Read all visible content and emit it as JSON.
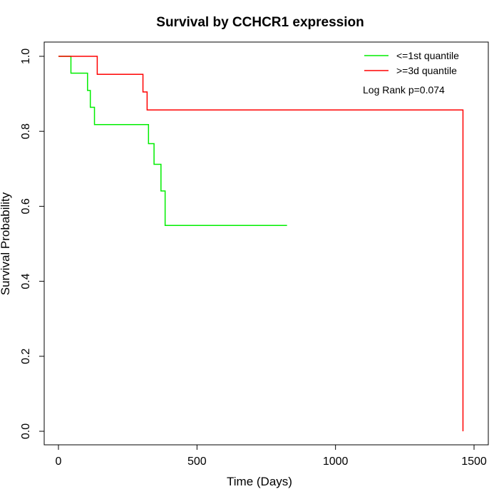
{
  "chart_data": {
    "type": "line",
    "title": "Survival by CCHCR1 expression",
    "xlabel": "Time (Days)",
    "ylabel": "Survival Probability",
    "xlim": [
      0,
      1500
    ],
    "ylim": [
      0,
      1.0
    ],
    "x_ticks": [
      0,
      500,
      1000,
      1500
    ],
    "x_tick_labels": [
      "0",
      "500",
      "1000",
      "1500"
    ],
    "y_ticks": [
      0,
      0.2,
      0.4,
      0.6,
      0.8,
      1.0
    ],
    "y_tick_labels": [
      "0.0",
      "0.2",
      "0.4",
      "0.6",
      "0.8",
      "1.0"
    ],
    "grid": false,
    "legend_position": "top-right",
    "annotation": "Log Rank p=0.074",
    "series": [
      {
        "name": "<=1st quantile",
        "color": "#00ee00",
        "step": true,
        "x": [
          0,
          45,
          105,
          115,
          130,
          325,
          345,
          370,
          385,
          825
        ],
        "y": [
          1.0,
          0.955,
          0.909,
          0.864,
          0.818,
          0.767,
          0.712,
          0.641,
          0.549,
          0.549
        ]
      },
      {
        "name": ">=3d quantile",
        "color": "#ff0000",
        "step": true,
        "x": [
          0,
          140,
          305,
          320,
          1460,
          1460
        ],
        "y": [
          1.0,
          0.952,
          0.905,
          0.857,
          0.857,
          0.0
        ]
      }
    ]
  }
}
